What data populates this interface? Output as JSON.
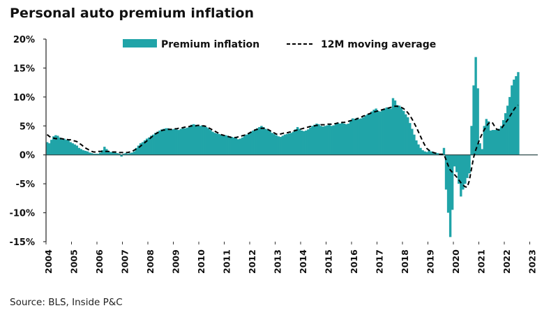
{
  "title": "Personal auto premium inflation",
  "source": "Source: BLS, Inside P&C",
  "colors": {
    "bars": "#20A4A8",
    "average": "#000000",
    "axis": "#333333"
  },
  "chart_data": {
    "type": "bar",
    "title": "Personal auto premium inflation",
    "xlabel": "",
    "ylabel": "",
    "ylim": [
      -15,
      20
    ],
    "xlim": [
      2004,
      2023.3
    ],
    "y_ticks": [
      20,
      15,
      10,
      5,
      0,
      -5,
      -10,
      -15
    ],
    "y_tick_labels": [
      "20%",
      "15%",
      "10%",
      "5%",
      "0%",
      "-5%",
      "-10%",
      "-15%"
    ],
    "x_tick_labels": [
      "2004",
      "2005",
      "2006",
      "2007",
      "2008",
      "2009",
      "2010",
      "2011",
      "2012",
      "2013",
      "2014",
      "2015",
      "2016",
      "2017",
      "2018",
      "2019",
      "2020",
      "2021",
      "2022",
      "2023"
    ],
    "legend": {
      "placement": "top",
      "entries": [
        "Premium inflation",
        "12M moving average"
      ]
    },
    "grid": false,
    "start": 2004,
    "frequency": "monthly",
    "series": [
      {
        "name": "Premium inflation",
        "type": "bar",
        "values": [
          2.2,
          2.0,
          2.6,
          3.2,
          3.4,
          3.3,
          3.0,
          2.8,
          2.8,
          2.6,
          2.5,
          2.2,
          2.0,
          1.8,
          1.6,
          1.2,
          1.0,
          0.8,
          0.7,
          0.6,
          0.4,
          0.3,
          0.2,
          0.2,
          0.2,
          0.4,
          0.8,
          1.4,
          1.0,
          0.6,
          0.5,
          0.5,
          0.4,
          0.3,
          0.2,
          -0.3,
          0.2,
          0.3,
          0.2,
          0.3,
          0.4,
          0.6,
          1.2,
          1.6,
          2.0,
          2.2,
          2.5,
          2.8,
          3.0,
          3.3,
          3.5,
          3.8,
          4.0,
          4.2,
          4.4,
          4.5,
          4.6,
          4.6,
          4.5,
          4.4,
          4.5,
          4.4,
          4.3,
          4.5,
          4.6,
          4.6,
          4.7,
          4.8,
          5.2,
          5.3,
          5.2,
          5.1,
          5.0,
          5.1,
          5.0,
          4.8,
          4.6,
          4.3,
          4.0,
          3.8,
          3.7,
          3.6,
          3.5,
          3.4,
          3.4,
          3.3,
          3.2,
          3.1,
          3.0,
          3.1,
          2.7,
          2.8,
          3.0,
          3.3,
          3.5,
          3.8,
          4.0,
          4.2,
          4.4,
          4.6,
          4.8,
          5.0,
          4.8,
          4.5,
          4.3,
          4.1,
          3.8,
          3.6,
          3.4,
          3.2,
          3.1,
          3.3,
          3.5,
          3.6,
          3.7,
          3.8,
          4.0,
          4.4,
          4.8,
          4.5,
          4.2,
          4.1,
          4.2,
          4.4,
          4.7,
          5.0,
          5.2,
          5.4,
          5.3,
          5.0,
          4.9,
          5.0,
          5.1,
          5.2,
          5.0,
          5.1,
          5.3,
          5.5,
          5.4,
          5.5,
          5.4,
          5.3,
          5.4,
          6.0,
          6.3,
          6.2,
          6.4,
          6.2,
          6.3,
          6.5,
          6.8,
          7.0,
          7.2,
          7.5,
          7.8,
          8.0,
          7.6,
          7.5,
          7.8,
          8.0,
          8.2,
          8.1,
          8.0,
          9.8,
          9.4,
          8.6,
          8.5,
          8.2,
          7.6,
          7.0,
          6.5,
          5.5,
          4.5,
          3.5,
          2.5,
          1.8,
          1.2,
          0.8,
          0.6,
          0.5,
          0.8,
          0.6,
          0.5,
          0.4,
          0.3,
          0.2,
          -0.1,
          1.2,
          -6.0,
          -10.0,
          -14.2,
          -9.5,
          -2.0,
          -3.0,
          -5.0,
          -7.2,
          -6.0,
          -5.0,
          -4.0,
          -3.2,
          5.0,
          12.0,
          16.9,
          11.5,
          2.0,
          1.0,
          5.0,
          6.2,
          5.8,
          4.2,
          4.3,
          4.3,
          4.4,
          4.5,
          5.0,
          6.0,
          7.2,
          8.5,
          10.0,
          12.0,
          13.0,
          13.6,
          14.3
        ]
      },
      {
        "name": "12M moving average",
        "type": "line",
        "style": "dashed",
        "values": [
          3.5,
          3.2,
          3.0,
          2.9,
          2.8,
          2.8,
          2.8,
          2.8,
          2.7,
          2.7,
          2.6,
          2.6,
          2.5,
          2.4,
          2.3,
          2.0,
          1.8,
          1.5,
          1.2,
          1.0,
          0.8,
          0.6,
          0.5,
          0.5,
          0.6,
          0.6,
          0.6,
          0.6,
          0.6,
          0.6,
          0.5,
          0.5,
          0.5,
          0.5,
          0.4,
          0.4,
          0.4,
          0.4,
          0.4,
          0.5,
          0.6,
          0.8,
          1.0,
          1.2,
          1.5,
          1.8,
          2.1,
          2.4,
          2.7,
          3.0,
          3.3,
          3.6,
          3.8,
          4.0,
          4.2,
          4.3,
          4.3,
          4.4,
          4.4,
          4.4,
          4.5,
          4.5,
          4.6,
          4.6,
          4.7,
          4.8,
          4.8,
          4.9,
          5.0,
          5.0,
          5.0,
          5.1,
          5.1,
          5.0,
          5.0,
          4.9,
          4.7,
          4.5,
          4.3,
          4.1,
          3.9,
          3.7,
          3.5,
          3.4,
          3.3,
          3.2,
          3.1,
          3.0,
          3.0,
          3.0,
          3.1,
          3.2,
          3.3,
          3.4,
          3.5,
          3.7,
          3.9,
          4.1,
          4.3,
          4.4,
          4.5,
          4.6,
          4.6,
          4.5,
          4.4,
          4.2,
          4.0,
          3.8,
          3.6,
          3.5,
          3.6,
          3.7,
          3.8,
          3.8,
          3.9,
          4.0,
          4.1,
          4.2,
          4.3,
          4.4,
          4.5,
          4.6,
          4.7,
          4.8,
          4.9,
          5.0,
          5.0,
          5.1,
          5.1,
          5.2,
          5.2,
          5.2,
          5.3,
          5.3,
          5.3,
          5.4,
          5.4,
          5.5,
          5.5,
          5.6,
          5.6,
          5.7,
          5.8,
          5.9,
          6.0,
          6.1,
          6.2,
          6.4,
          6.5,
          6.7,
          6.8,
          7.0,
          7.1,
          7.3,
          7.4,
          7.5,
          7.6,
          7.7,
          7.8,
          7.9,
          8.0,
          8.1,
          8.2,
          8.3,
          8.4,
          8.4,
          8.3,
          8.2,
          8.0,
          7.7,
          7.3,
          6.8,
          6.2,
          5.5,
          4.8,
          4.0,
          3.2,
          2.4,
          1.7,
          1.1,
          0.8,
          0.6,
          0.4,
          0.3,
          0.2,
          0.1,
          0.1,
          0.1,
          -0.8,
          -1.8,
          -2.6,
          -3.0,
          -3.4,
          -3.8,
          -4.3,
          -4.8,
          -5.2,
          -5.5,
          -5.6,
          -4.5,
          -2.5,
          -0.5,
          0.8,
          1.8,
          2.8,
          3.6,
          4.3,
          4.9,
          5.4,
          5.7,
          5.5,
          4.9,
          4.4,
          4.3,
          4.5,
          5.0,
          5.5,
          6.0,
          6.6,
          7.2,
          7.8,
          8.3,
          8.6
        ]
      }
    ]
  }
}
